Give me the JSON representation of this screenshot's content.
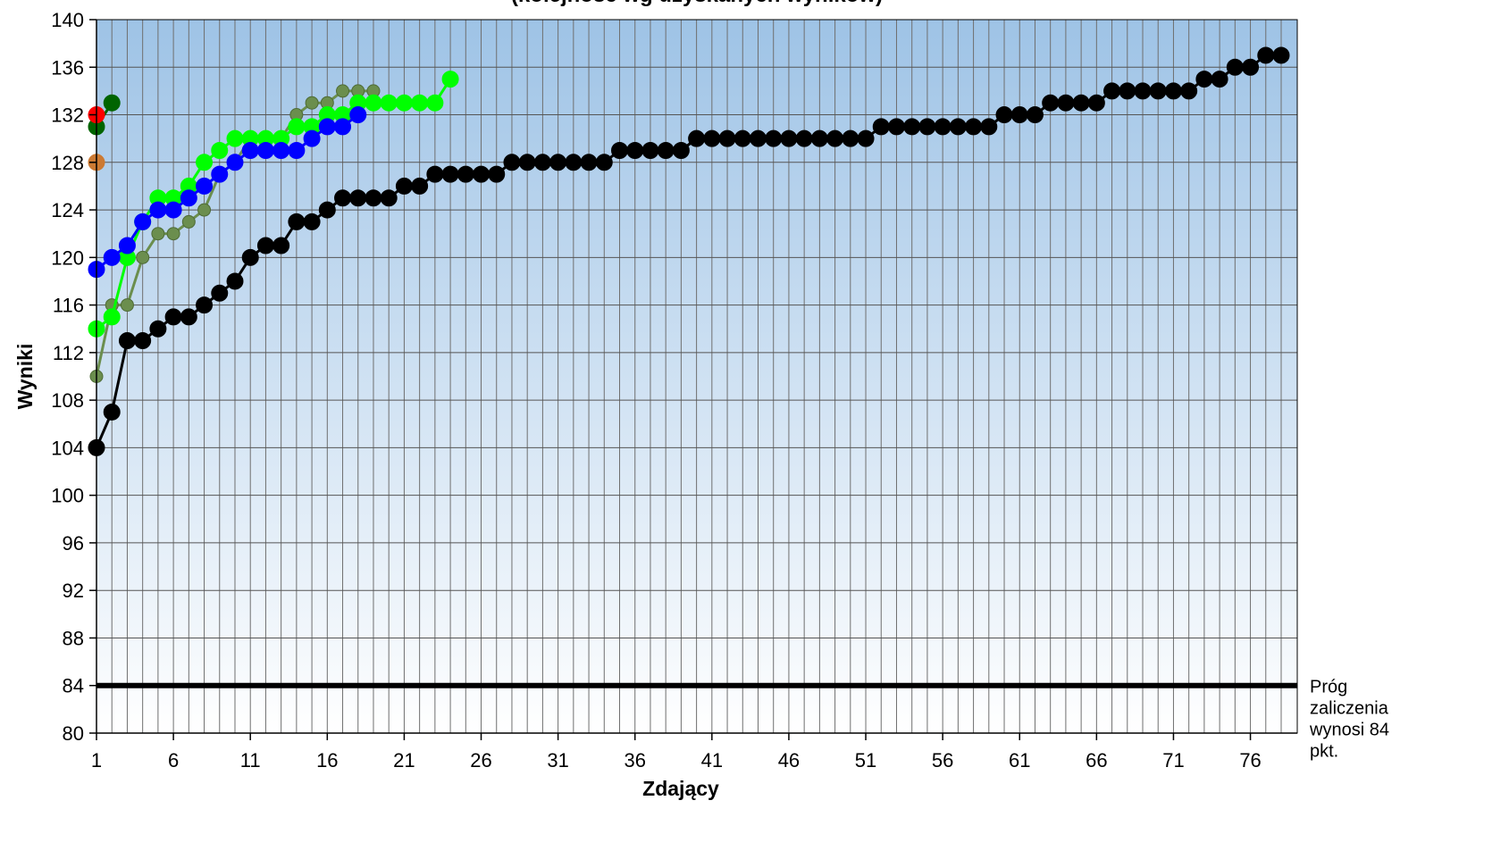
{
  "chart_data": {
    "type": "line",
    "title": "(kolejność wg uzyskanych wyników)",
    "xlabel": "Zdający",
    "ylabel": "Wyniki",
    "xlim": [
      1,
      78
    ],
    "ylim": [
      80,
      140
    ],
    "y_ticks": [
      80,
      84,
      88,
      92,
      96,
      100,
      104,
      108,
      112,
      116,
      120,
      124,
      128,
      132,
      136,
      140
    ],
    "x_ticks": [
      1,
      6,
      11,
      16,
      21,
      26,
      31,
      36,
      41,
      46,
      51,
      56,
      61,
      66,
      71,
      76
    ],
    "grid": true,
    "legend": "none",
    "threshold": {
      "value": 84,
      "label_lines": [
        "Próg",
        "zaliczenia",
        "wynosi 84",
        "pkt."
      ],
      "color": "#000000"
    },
    "series": [
      {
        "color": "#000000",
        "x": [
          1,
          2,
          3,
          4,
          5,
          6,
          7,
          8,
          9,
          10,
          11,
          12,
          13,
          14,
          15,
          16,
          17,
          18,
          19,
          20,
          21,
          22,
          23,
          24,
          25,
          26,
          27,
          28,
          29,
          30,
          31,
          32,
          33,
          34,
          35,
          36,
          37,
          38,
          39,
          40,
          41,
          42,
          43,
          44,
          45,
          46,
          47,
          48,
          49,
          50,
          51,
          52,
          53,
          54,
          55,
          56,
          57,
          58,
          59,
          60,
          61,
          62,
          63,
          64,
          65,
          66,
          67,
          68,
          69,
          70,
          71,
          72,
          73,
          74,
          75,
          76,
          77,
          78
        ],
        "values": [
          104,
          107,
          113,
          113,
          114,
          115,
          115,
          116,
          117,
          118,
          120,
          121,
          121,
          123,
          123,
          124,
          125,
          125,
          125,
          125,
          126,
          126,
          127,
          127,
          127,
          127,
          127,
          128,
          128,
          128,
          128,
          128,
          128,
          128,
          129,
          129,
          129,
          129,
          129,
          130,
          130,
          130,
          130,
          130,
          130,
          130,
          130,
          130,
          130,
          130,
          130,
          131,
          131,
          131,
          131,
          131,
          131,
          131,
          131,
          132,
          132,
          132,
          133,
          133,
          133,
          133,
          134,
          134,
          134,
          134,
          134,
          134,
          135,
          135,
          136,
          136,
          137,
          137
        ]
      },
      {
        "color": "#6b8e4e",
        "x": [
          1,
          2,
          3,
          4,
          5,
          6,
          7,
          8,
          9,
          10,
          11,
          12,
          13,
          14,
          15,
          16,
          17,
          18,
          19
        ],
        "values": [
          110,
          116,
          116,
          120,
          122,
          122,
          123,
          124,
          127,
          128,
          130,
          130,
          130,
          132,
          133,
          133,
          134,
          134,
          134
        ]
      },
      {
        "color": "#00ff00",
        "x": [
          1,
          2,
          3,
          4,
          5,
          6,
          7,
          8,
          9,
          10,
          11,
          12,
          13,
          14,
          15,
          16,
          17,
          18,
          19,
          20,
          21,
          22,
          23,
          24
        ],
        "values": [
          114,
          115,
          120,
          123,
          125,
          125,
          126,
          128,
          129,
          130,
          130,
          130,
          130,
          131,
          131,
          132,
          132,
          133,
          133,
          133,
          133,
          133,
          133,
          135
        ]
      },
      {
        "color": "#0000ff",
        "x": [
          1,
          2,
          3,
          4,
          5,
          6,
          7,
          8,
          9,
          10,
          11,
          12,
          13,
          14,
          15,
          16,
          17,
          18
        ],
        "values": [
          119,
          120,
          121,
          123,
          124,
          124,
          125,
          126,
          127,
          128,
          129,
          129,
          129,
          129,
          130,
          131,
          131,
          132
        ]
      },
      {
        "color": "#006400",
        "x": [
          1,
          2
        ],
        "values": [
          131,
          133
        ]
      },
      {
        "color": "#ff0000",
        "x": [
          1
        ],
        "values": [
          132
        ]
      },
      {
        "color": "#cc7a33",
        "x": [
          1
        ],
        "values": [
          128
        ]
      }
    ]
  }
}
